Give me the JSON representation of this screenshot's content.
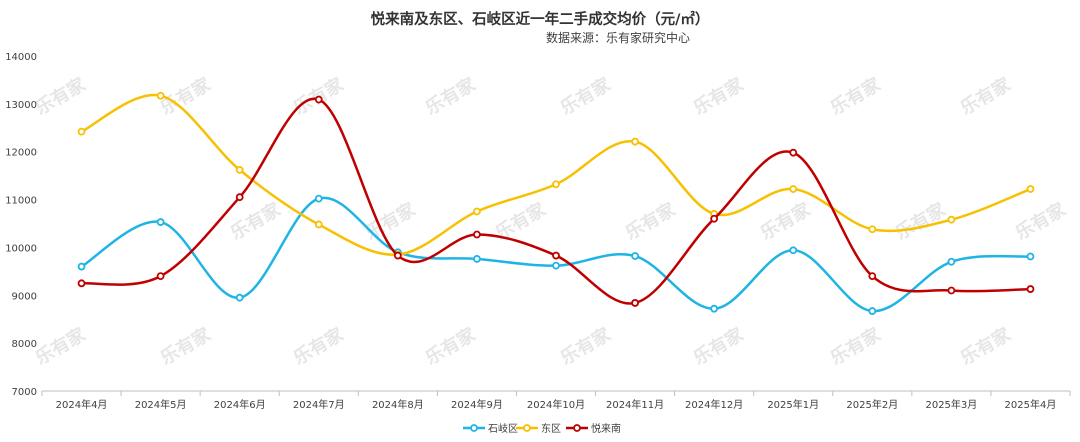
{
  "chart_data": {
    "type": "line",
    "title": "悦来南及东区、石岐区近一年二手成交均价（元/㎡）",
    "subtitle": "数据来源：乐有家研究中心",
    "watermark": "乐有家",
    "categories": [
      "2024年4月",
      "2024年5月",
      "2024年6月",
      "2024年7月",
      "2024年8月",
      "2024年9月",
      "2024年10月",
      "2024年11月",
      "2024年12月",
      "2025年1月",
      "2025年2月",
      "2025年3月",
      "2025年4月"
    ],
    "yticks": [
      "7000",
      "8000",
      "9000",
      "10000",
      "11000",
      "12000",
      "13000",
      "14000"
    ],
    "ylim": [
      7000,
      14000
    ],
    "grid": false,
    "legend_position": "bottom",
    "series": [
      {
        "name": "石岐区",
        "color": "#1eb4e6",
        "values": [
          9600,
          10530,
          8950,
          11020,
          9900,
          9760,
          9620,
          9820,
          8720,
          9940,
          8670,
          9700,
          9810
        ]
      },
      {
        "name": "东区",
        "color": "#f7c000",
        "values": [
          12420,
          13170,
          11620,
          10480,
          9850,
          10750,
          11320,
          12210,
          10700,
          11220,
          10380,
          10580,
          11220
        ]
      },
      {
        "name": "悦来南",
        "color": "#c00000",
        "values": [
          9250,
          9400,
          11050,
          13090,
          9830,
          10270,
          9830,
          8840,
          10600,
          11980,
          9400,
          9100,
          9130
        ]
      }
    ]
  }
}
